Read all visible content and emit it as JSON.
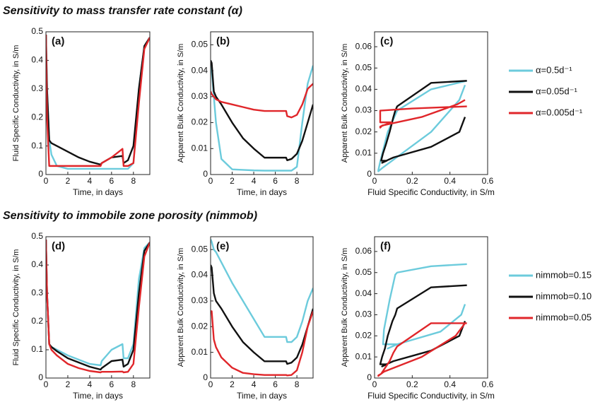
{
  "sections": [
    {
      "title": "Sensitivity to mass transfer rate constant (α)"
    },
    {
      "title": "Sensitivity to immobile zone porosity (nimmob)"
    }
  ],
  "chart_data": [
    {
      "type": "line",
      "title": "(a)",
      "xlabel": "Time, in days",
      "ylabel": "Fluid Specific Conductivity, in S/m",
      "xlim": [
        0,
        9.5
      ],
      "xticks": [
        0,
        2,
        4,
        6,
        8
      ],
      "ylim": [
        0,
        0.5
      ],
      "yticks": [
        0,
        0.1,
        0.2,
        0.3,
        0.4,
        0.5
      ],
      "x": [
        0,
        0.1,
        0.3,
        0.5,
        1,
        2,
        3,
        4,
        5,
        5.1,
        6,
        7,
        7.1,
        7.5,
        8,
        8.5,
        9,
        9.5
      ],
      "series": [
        {
          "color": "#6ccbdc",
          "values": [
            0.49,
            0.3,
            0.12,
            0.07,
            0.03,
            0.02,
            0.02,
            0.02,
            0.02,
            0.02,
            0.02,
            0.02,
            0.02,
            0.02,
            0.04,
            0.3,
            0.45,
            0.48
          ]
        },
        {
          "color": "#111111",
          "values": [
            0.49,
            0.3,
            0.12,
            0.11,
            0.1,
            0.08,
            0.06,
            0.045,
            0.035,
            0.04,
            0.06,
            0.065,
            0.04,
            0.05,
            0.1,
            0.3,
            0.45,
            0.48
          ]
        },
        {
          "color": "#e0262a",
          "values": [
            0.49,
            0.2,
            0.03,
            0.03,
            0.03,
            0.03,
            0.03,
            0.03,
            0.03,
            0.04,
            0.06,
            0.09,
            0.03,
            0.03,
            0.04,
            0.25,
            0.44,
            0.48
          ]
        }
      ]
    },
    {
      "type": "line",
      "title": "(b)",
      "xlabel": "Time, in days",
      "ylabel": "Apparent Bulk Conductivity, in S/m",
      "xlim": [
        0,
        9.5
      ],
      "xticks": [
        0,
        2,
        4,
        6,
        8
      ],
      "ylim": [
        0,
        0.055
      ],
      "yticks": [
        0,
        0.01,
        0.02,
        0.03,
        0.04,
        0.05
      ],
      "x": [
        0,
        0.1,
        0.3,
        0.5,
        1,
        2,
        3,
        4,
        5,
        5.1,
        6,
        7,
        7.1,
        7.5,
        8,
        8.5,
        9,
        9.5
      ],
      "series": [
        {
          "color": "#6ccbdc",
          "values": [
            0.044,
            0.04,
            0.03,
            0.02,
            0.006,
            0.002,
            0.0018,
            0.0016,
            0.0015,
            0.0015,
            0.0015,
            0.0015,
            0.0015,
            0.0015,
            0.003,
            0.02,
            0.035,
            0.042
          ]
        },
        {
          "color": "#111111",
          "values": [
            0.044,
            0.043,
            0.032,
            0.03,
            0.027,
            0.02,
            0.014,
            0.01,
            0.0065,
            0.0065,
            0.0065,
            0.0065,
            0.0055,
            0.006,
            0.008,
            0.013,
            0.02,
            0.027
          ]
        },
        {
          "color": "#e0262a",
          "values": [
            0.032,
            0.031,
            0.03,
            0.029,
            0.028,
            0.027,
            0.026,
            0.025,
            0.0245,
            0.0245,
            0.0245,
            0.0245,
            0.0225,
            0.022,
            0.023,
            0.027,
            0.033,
            0.035
          ]
        }
      ]
    },
    {
      "type": "xyline",
      "title": "(c)",
      "xlabel": "Fluid Specific Conductivity, in S/m",
      "ylabel": "Apparent Bulk Conductivity, in S/m",
      "xlim": [
        0,
        0.6
      ],
      "xticks": [
        0,
        0.2,
        0.4,
        0.6
      ],
      "ylim": [
        0,
        0.067
      ],
      "yticks": [
        0,
        0.01,
        0.02,
        0.03,
        0.04,
        0.05,
        0.06
      ],
      "legend": "right",
      "series": [
        {
          "name": "α=0.5d⁻¹",
          "color": "#6ccbdc",
          "x": [
            0.49,
            0.3,
            0.12,
            0.07,
            0.03,
            0.02,
            0.02,
            0.02,
            0.02,
            0.04,
            0.3,
            0.45,
            0.48
          ],
          "values": [
            0.044,
            0.04,
            0.03,
            0.02,
            0.006,
            0.002,
            0.0018,
            0.0015,
            0.0015,
            0.003,
            0.02,
            0.035,
            0.042
          ]
        },
        {
          "name": "α=0.05d⁻¹",
          "color": "#111111",
          "x": [
            0.49,
            0.3,
            0.12,
            0.11,
            0.1,
            0.08,
            0.06,
            0.045,
            0.035,
            0.04,
            0.06,
            0.065,
            0.04,
            0.05,
            0.1,
            0.3,
            0.45,
            0.48
          ],
          "values": [
            0.044,
            0.043,
            0.032,
            0.03,
            0.027,
            0.02,
            0.014,
            0.01,
            0.0065,
            0.0065,
            0.0065,
            0.0065,
            0.0055,
            0.006,
            0.008,
            0.013,
            0.02,
            0.027
          ]
        },
        {
          "name": "α=0.005d⁻¹",
          "color": "#e0262a",
          "x": [
            0.49,
            0.2,
            0.03,
            0.03,
            0.03,
            0.03,
            0.03,
            0.03,
            0.04,
            0.06,
            0.09,
            0.03,
            0.03,
            0.04,
            0.25,
            0.44,
            0.48
          ],
          "values": [
            0.032,
            0.031,
            0.03,
            0.029,
            0.028,
            0.027,
            0.026,
            0.0245,
            0.0245,
            0.0245,
            0.0245,
            0.0225,
            0.022,
            0.023,
            0.027,
            0.033,
            0.035
          ]
        }
      ]
    },
    {
      "type": "line",
      "title": "(d)",
      "xlabel": "Time, in days",
      "ylabel": "Fluid Specific Conductivity, in S/m",
      "xlim": [
        0,
        9.5
      ],
      "xticks": [
        0,
        2,
        4,
        6,
        8
      ],
      "ylim": [
        0,
        0.5
      ],
      "yticks": [
        0,
        0.1,
        0.2,
        0.3,
        0.4,
        0.5
      ],
      "x": [
        0,
        0.1,
        0.3,
        0.5,
        1,
        2,
        3,
        4,
        5,
        5.1,
        6,
        7,
        7.1,
        7.5,
        8,
        8.5,
        9,
        9.5
      ],
      "series": [
        {
          "color": "#6ccbdc",
          "values": [
            0.49,
            0.3,
            0.12,
            0.11,
            0.1,
            0.08,
            0.065,
            0.05,
            0.045,
            0.06,
            0.1,
            0.12,
            0.07,
            0.07,
            0.12,
            0.35,
            0.46,
            0.48
          ]
        },
        {
          "color": "#111111",
          "values": [
            0.49,
            0.3,
            0.12,
            0.11,
            0.095,
            0.07,
            0.055,
            0.04,
            0.03,
            0.035,
            0.06,
            0.065,
            0.04,
            0.05,
            0.1,
            0.3,
            0.45,
            0.48
          ]
        },
        {
          "color": "#e0262a",
          "values": [
            0.49,
            0.3,
            0.12,
            0.1,
            0.08,
            0.05,
            0.035,
            0.025,
            0.02,
            0.022,
            0.022,
            0.023,
            0.02,
            0.022,
            0.05,
            0.25,
            0.43,
            0.48
          ]
        }
      ]
    },
    {
      "type": "line",
      "title": "(e)",
      "xlabel": "Time, in days",
      "ylabel": "Apparent Bulk Conductivity, in S/m",
      "xlim": [
        0,
        9.5
      ],
      "xticks": [
        0,
        2,
        4,
        6,
        8
      ],
      "ylim": [
        0,
        0.055
      ],
      "yticks": [
        0,
        0.01,
        0.02,
        0.03,
        0.04,
        0.05
      ],
      "x": [
        0,
        0.1,
        0.3,
        0.5,
        1,
        2,
        3,
        4,
        5,
        5.1,
        6,
        7,
        7.1,
        7.5,
        8,
        8.5,
        9,
        9.5
      ],
      "series": [
        {
          "color": "#6ccbdc",
          "values": [
            0.054,
            0.053,
            0.05,
            0.049,
            0.045,
            0.037,
            0.03,
            0.023,
            0.016,
            0.016,
            0.016,
            0.016,
            0.014,
            0.014,
            0.016,
            0.022,
            0.03,
            0.035
          ]
        },
        {
          "color": "#111111",
          "values": [
            0.044,
            0.043,
            0.033,
            0.03,
            0.027,
            0.02,
            0.014,
            0.01,
            0.0065,
            0.0065,
            0.0065,
            0.0065,
            0.0055,
            0.006,
            0.008,
            0.013,
            0.02,
            0.027
          ]
        },
        {
          "color": "#e0262a",
          "values": [
            0.026,
            0.026,
            0.015,
            0.012,
            0.008,
            0.004,
            0.002,
            0.0015,
            0.0012,
            0.0012,
            0.0012,
            0.0012,
            0.001,
            0.0012,
            0.003,
            0.01,
            0.02,
            0.026
          ]
        }
      ]
    },
    {
      "type": "xyline",
      "title": "(f)",
      "xlabel": "Fluid Specific Conductivity, in S/m",
      "ylabel": "Apparent Bulk Conductivity, in S/m",
      "xlim": [
        0,
        0.6
      ],
      "xticks": [
        0,
        0.2,
        0.4,
        0.6
      ],
      "ylim": [
        0,
        0.067
      ],
      "yticks": [
        0,
        0.01,
        0.02,
        0.03,
        0.04,
        0.05,
        0.06
      ],
      "legend": "right",
      "series": [
        {
          "name": "nimmob=0.15",
          "color": "#6ccbdc",
          "x": [
            0.48,
            0.46,
            0.35,
            0.12,
            0.07,
            0.07,
            0.12,
            0.1,
            0.06,
            0.045,
            0.05,
            0.065,
            0.08,
            0.1,
            0.11,
            0.12,
            0.3,
            0.49
          ],
          "values": [
            0.035,
            0.03,
            0.022,
            0.016,
            0.014,
            0.014,
            0.016,
            0.016,
            0.016,
            0.016,
            0.023,
            0.03,
            0.037,
            0.045,
            0.049,
            0.05,
            0.053,
            0.054
          ]
        },
        {
          "name": "nimmob=0.10",
          "color": "#111111",
          "x": [
            0.48,
            0.45,
            0.3,
            0.1,
            0.05,
            0.04,
            0.065,
            0.06,
            0.035,
            0.03,
            0.04,
            0.055,
            0.07,
            0.095,
            0.11,
            0.12,
            0.3,
            0.49
          ],
          "values": [
            0.027,
            0.02,
            0.013,
            0.008,
            0.006,
            0.0055,
            0.0065,
            0.0065,
            0.0065,
            0.0065,
            0.01,
            0.014,
            0.02,
            0.027,
            0.03,
            0.033,
            0.043,
            0.044
          ]
        },
        {
          "name": "nimmob=0.05",
          "color": "#e0262a",
          "x": [
            0.48,
            0.43,
            0.25,
            0.05,
            0.022,
            0.02,
            0.023,
            0.022,
            0.022,
            0.02,
            0.025,
            0.035,
            0.05,
            0.08,
            0.1,
            0.12,
            0.3,
            0.49
          ],
          "values": [
            0.026,
            0.02,
            0.01,
            0.003,
            0.0012,
            0.001,
            0.0012,
            0.0012,
            0.0012,
            0.0012,
            0.0015,
            0.002,
            0.004,
            0.008,
            0.012,
            0.015,
            0.026,
            0.026
          ]
        }
      ]
    }
  ]
}
